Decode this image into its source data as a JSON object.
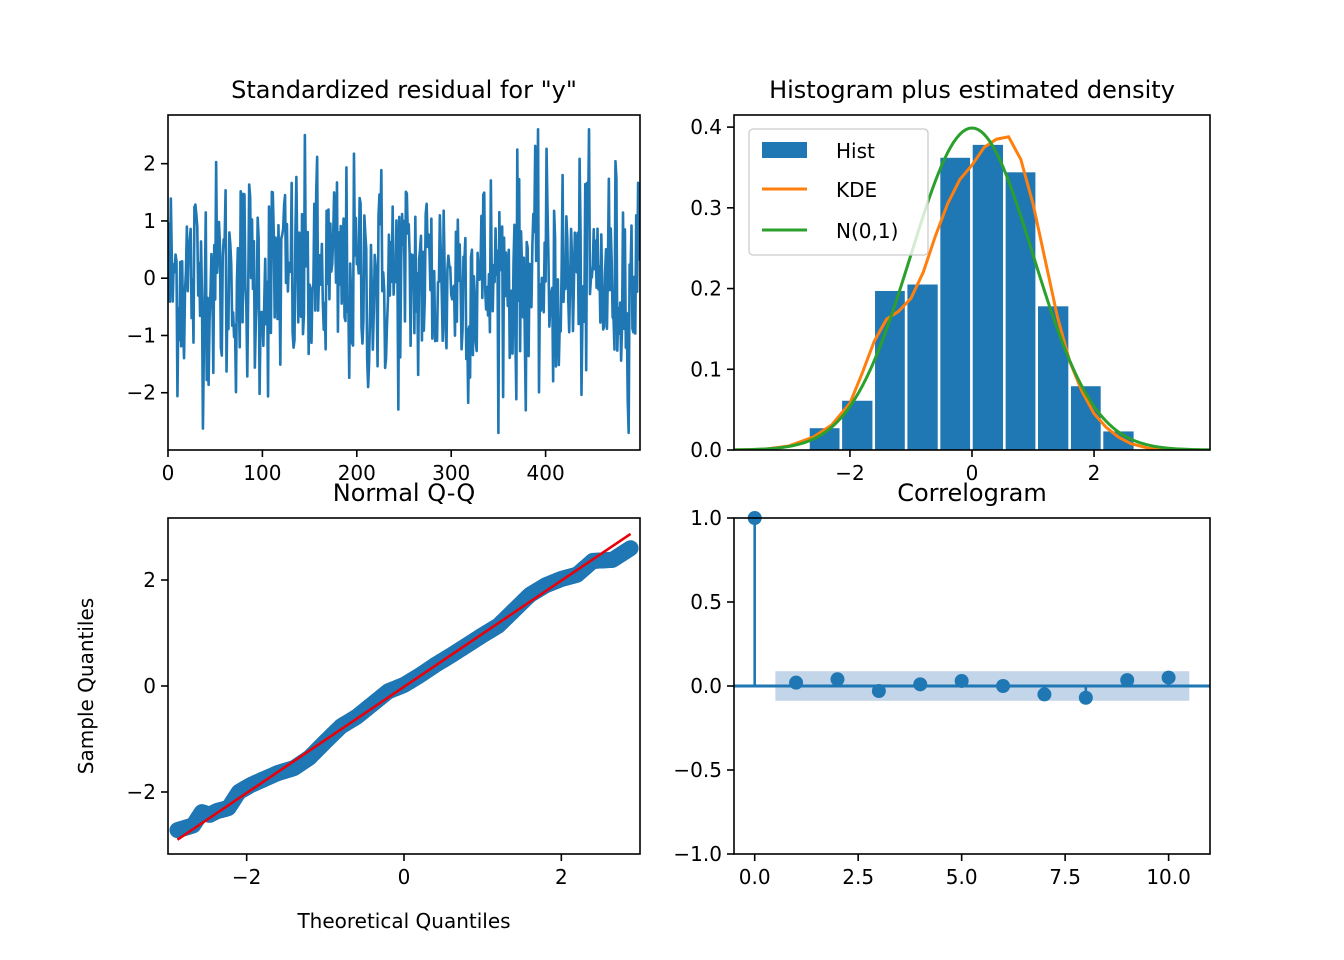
{
  "colors": {
    "blue": "#1f77b4",
    "orange": "#ff7f0e",
    "green": "#2ca02c",
    "red": "#e8000b",
    "band": "#c3d5e8"
  },
  "chart_data": [
    {
      "id": "resid",
      "type": "line",
      "title": "Standardized residual for \"y\"",
      "xlabel": "",
      "ylabel": "",
      "xlim": [
        0,
        500
      ],
      "ylim": [
        -3.0,
        2.85
      ],
      "xticks": [
        0,
        100,
        200,
        300,
        400
      ],
      "xtick_labels": [
        "0",
        "100",
        "200",
        "300",
        "400"
      ],
      "yticks": [
        -2,
        -1,
        0,
        1,
        2
      ],
      "ytick_labels": [
        "−2",
        "−1",
        "0",
        "1",
        "2"
      ],
      "n": 500,
      "y_approx_range": [
        -2.7,
        2.6
      ]
    },
    {
      "id": "hist",
      "type": "bar",
      "title": "Histogram plus estimated density",
      "xlim": [
        -3.9,
        3.9
      ],
      "ylim": [
        0,
        0.415
      ],
      "xticks": [
        -2,
        0,
        2
      ],
      "xtick_labels": [
        "−2",
        "0",
        "2"
      ],
      "yticks": [
        0,
        0.1,
        0.2,
        0.3,
        0.4
      ],
      "ytick_labels": [
        "0.0",
        "0.1",
        "0.2",
        "0.3",
        "0.4"
      ],
      "bin_edges": [
        -2.68,
        -2.15,
        -1.61,
        -1.08,
        -0.54,
        -0.01,
        0.53,
        1.06,
        1.6,
        2.13,
        2.67
      ],
      "values": [
        0.027,
        0.061,
        0.197,
        0.205,
        0.362,
        0.378,
        0.344,
        0.178,
        0.079,
        0.023
      ],
      "kde": {
        "x": [
          -3.9,
          -3.4,
          -3.0,
          -2.6,
          -2.3,
          -2.0,
          -1.8,
          -1.6,
          -1.4,
          -1.2,
          -1.0,
          -0.8,
          -0.6,
          -0.4,
          -0.2,
          0.0,
          0.2,
          0.4,
          0.6,
          0.8,
          1.0,
          1.2,
          1.4,
          1.6,
          1.8,
          2.0,
          2.2,
          2.4,
          2.6,
          2.9,
          3.2,
          3.5,
          3.9
        ],
        "y": [
          0.0,
          0.001,
          0.005,
          0.016,
          0.031,
          0.058,
          0.095,
          0.135,
          0.162,
          0.172,
          0.188,
          0.22,
          0.265,
          0.305,
          0.335,
          0.353,
          0.375,
          0.385,
          0.388,
          0.36,
          0.305,
          0.235,
          0.165,
          0.11,
          0.073,
          0.045,
          0.028,
          0.016,
          0.008,
          0.002,
          0.0005,
          0.0001,
          0.0
        ]
      },
      "legend": [
        "Hist",
        "KDE",
        "N(0,1)"
      ],
      "legend_position": "top-left"
    },
    {
      "id": "qq",
      "type": "scatter",
      "title": "Normal Q-Q",
      "xlabel": "Theoretical Quantiles",
      "ylabel": "Sample Quantiles",
      "xlim": [
        -3.0,
        3.0
      ],
      "ylim": [
        -3.17,
        3.17
      ],
      "xticks": [
        -2,
        0,
        2
      ],
      "xtick_labels": [
        "−2",
        "0",
        "2"
      ],
      "yticks": [
        -2,
        0,
        2
      ],
      "ytick_labels": [
        "−2",
        "0",
        "2"
      ],
      "points": [
        [
          -2.88,
          -2.72
        ],
        [
          -2.68,
          -2.63
        ],
        [
          -2.57,
          -2.38
        ],
        [
          -2.47,
          -2.43
        ],
        [
          -2.38,
          -2.36
        ],
        [
          -2.3,
          -2.33
        ],
        [
          -2.23,
          -2.3
        ],
        [
          -2.1,
          -2.0
        ],
        [
          -1.95,
          -1.87
        ],
        [
          -1.8,
          -1.77
        ],
        [
          -1.6,
          -1.64
        ],
        [
          -1.4,
          -1.55
        ],
        [
          -1.2,
          -1.35
        ],
        [
          -1.0,
          -1.05
        ],
        [
          -0.8,
          -0.76
        ],
        [
          -0.6,
          -0.58
        ],
        [
          -0.4,
          -0.34
        ],
        [
          -0.2,
          -0.1
        ],
        [
          0.0,
          0.02
        ],
        [
          0.2,
          0.2
        ],
        [
          0.4,
          0.4
        ],
        [
          0.6,
          0.58
        ],
        [
          0.8,
          0.77
        ],
        [
          1.0,
          0.96
        ],
        [
          1.2,
          1.14
        ],
        [
          1.4,
          1.43
        ],
        [
          1.6,
          1.72
        ],
        [
          1.8,
          1.9
        ],
        [
          2.0,
          2.02
        ],
        [
          2.2,
          2.1
        ],
        [
          2.4,
          2.36
        ],
        [
          2.65,
          2.38
        ],
        [
          2.88,
          2.6
        ]
      ],
      "line": {
        "x": [
          -2.88,
          2.88
        ],
        "y": [
          -2.9,
          2.87
        ]
      }
    },
    {
      "id": "acf",
      "type": "scatter",
      "title": "Correlogram",
      "xlim": [
        -0.5,
        11.0
      ],
      "ylim": [
        -1.0,
        1.0
      ],
      "xticks": [
        0.0,
        2.5,
        5.0,
        7.5,
        10.0
      ],
      "xtick_labels": [
        "0.0",
        "2.5",
        "5.0",
        "7.5",
        "10.0"
      ],
      "yticks": [
        -1.0,
        -0.5,
        0.0,
        0.5,
        1.0
      ],
      "ytick_labels": [
        "−1.0",
        "−0.5",
        "0.0",
        "0.5",
        "1.0"
      ],
      "lags": [
        0,
        1,
        2,
        3,
        4,
        5,
        6,
        7,
        8,
        9,
        10
      ],
      "values": [
        1.0,
        0.02,
        0.04,
        -0.03,
        0.01,
        0.03,
        0.0,
        -0.05,
        -0.07,
        0.035,
        0.05
      ],
      "confint": 0.088,
      "band_x": [
        0.5,
        10.5
      ]
    }
  ]
}
